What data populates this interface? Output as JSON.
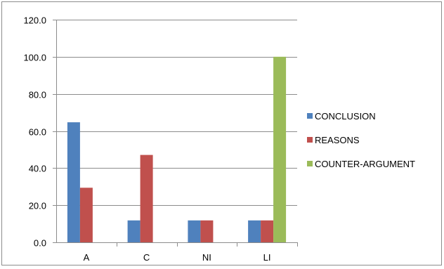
{
  "chart_data": {
    "type": "bar",
    "title": "",
    "xlabel": "",
    "ylabel": "",
    "categories": [
      "A",
      "C",
      "NI",
      "LI"
    ],
    "series": [
      {
        "name": "CONCLUSION",
        "color": "#4f81bd",
        "values": [
          64.7,
          11.8,
          11.8,
          11.8
        ]
      },
      {
        "name": "REASONS",
        "color": "#c0504d",
        "values": [
          29.4,
          47.1,
          11.8,
          11.8
        ]
      },
      {
        "name": "COUNTER-ARGUMENT",
        "color": "#9bbb59",
        "values": [
          0,
          0,
          0,
          100.0
        ]
      }
    ],
    "ylim": [
      0,
      120
    ],
    "yticks": [
      "0.0",
      "20.0",
      "40.0",
      "60.0",
      "80.0",
      "100.0",
      "120.0"
    ],
    "grid": true,
    "legend": "right"
  }
}
